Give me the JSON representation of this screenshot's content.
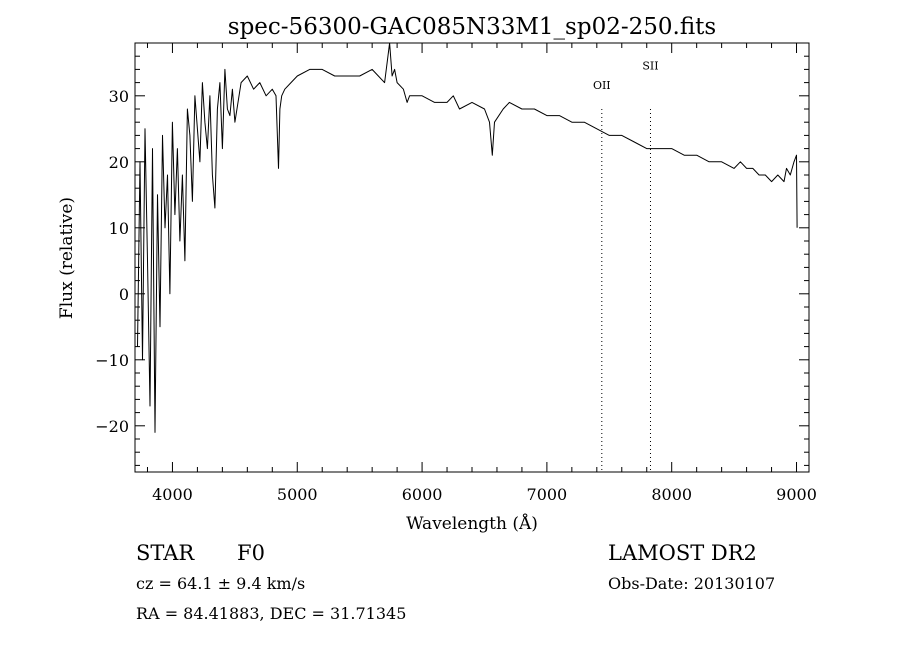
{
  "chart_data": {
    "type": "line",
    "title": "spec-56300-GAC085N33M1_sp02-250.fits",
    "xlabel": "Wavelength (Å)",
    "ylabel": "Flux (relative)",
    "xlim": [
      3700,
      9100
    ],
    "ylim": [
      -27,
      38
    ],
    "x_ticks": [
      4000,
      5000,
      6000,
      7000,
      8000,
      9000
    ],
    "y_ticks": [
      -20,
      -10,
      0,
      10,
      20,
      30
    ],
    "x_tick_labels": [
      "4000",
      "5000",
      "6000",
      "7000",
      "8000",
      "9000"
    ],
    "y_tick_labels": [
      "−20",
      "−10",
      "0",
      "10",
      "20",
      "30"
    ],
    "grid": false,
    "line_color": "#000000",
    "series": [
      {
        "x": [
          3720,
          3740,
          3760,
          3780,
          3800,
          3820,
          3840,
          3860,
          3880,
          3900,
          3920,
          3940,
          3960,
          3980,
          4000,
          4020,
          4040,
          4060,
          4080,
          4100,
          4120,
          4140,
          4160,
          4180,
          4200,
          4220,
          4240,
          4260,
          4280,
          4300,
          4320,
          4340,
          4360,
          4380,
          4400,
          4420,
          4440,
          4460,
          4480,
          4500,
          4550,
          4600,
          4650,
          4700,
          4750,
          4800,
          4830,
          4850,
          4861,
          4875,
          4900,
          4950,
          5000,
          5100,
          5200,
          5300,
          5400,
          5500,
          5600,
          5700,
          5720,
          5740,
          5760,
          5780,
          5800,
          5850,
          5880,
          5900,
          5950,
          6000,
          6100,
          6200,
          6250,
          6300,
          6400,
          6500,
          6540,
          6563,
          6580,
          6650,
          6700,
          6800,
          6900,
          7000,
          7100,
          7200,
          7300,
          7400,
          7500,
          7600,
          7700,
          7800,
          7900,
          8000,
          8100,
          8200,
          8300,
          8400,
          8500,
          8550,
          8600,
          8650,
          8700,
          8750,
          8800,
          8850,
          8900,
          8920,
          8950,
          8980,
          9000,
          9005
        ],
        "values": [
          -8,
          20,
          -10,
          25,
          5,
          -17,
          22,
          -21,
          15,
          -5,
          24,
          10,
          18,
          0,
          26,
          12,
          22,
          8,
          18,
          5,
          28,
          24,
          14,
          30,
          25,
          20,
          32,
          26,
          22,
          30,
          18,
          13,
          28,
          32,
          22,
          34,
          28,
          27,
          31,
          26,
          32,
          33,
          31,
          32,
          30,
          31,
          30,
          19,
          28,
          30,
          31,
          32,
          33,
          34,
          34,
          33,
          33,
          33,
          34,
          32,
          35,
          38,
          33,
          34,
          32,
          31,
          29,
          30,
          30,
          30,
          29,
          29,
          30,
          28,
          29,
          28,
          26,
          21,
          26,
          28,
          29,
          28,
          28,
          27,
          27,
          26,
          26,
          25,
          24,
          24,
          23,
          22,
          22,
          22,
          21,
          21,
          20,
          20,
          19,
          20,
          19,
          19,
          18,
          18,
          17,
          18,
          17,
          19,
          18,
          20,
          21,
          10
        ]
      }
    ],
    "annotations": [
      {
        "label": "OII",
        "x": 7440,
        "y": 31
      },
      {
        "label": "SII",
        "x": 7830,
        "y": 34
      }
    ]
  },
  "info": {
    "class": "STAR",
    "subclass": "F0",
    "survey": "LAMOST DR2",
    "cz": "cz = 64.1 ± 9.4 km/s",
    "obs_date": "Obs-Date: 20130107",
    "radec": "RA =  84.41883, DEC =  31.71345"
  }
}
